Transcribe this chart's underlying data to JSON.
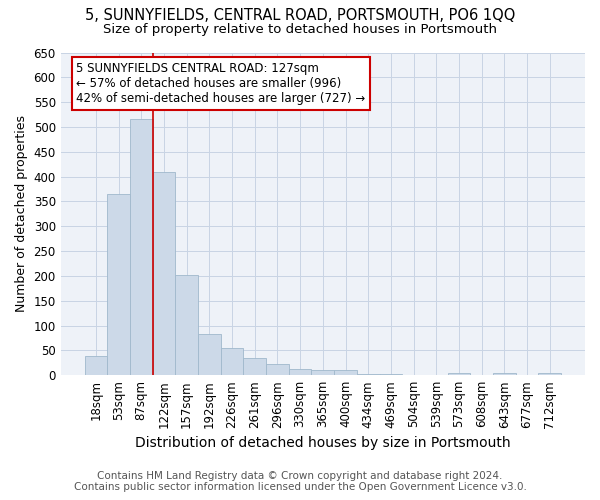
{
  "title": "5, SUNNYFIELDS, CENTRAL ROAD, PORTSMOUTH, PO6 1QQ",
  "subtitle": "Size of property relative to detached houses in Portsmouth",
  "xlabel": "Distribution of detached houses by size in Portsmouth",
  "ylabel": "Number of detached properties",
  "categories": [
    "18sqm",
    "53sqm",
    "87sqm",
    "122sqm",
    "157sqm",
    "192sqm",
    "226sqm",
    "261sqm",
    "296sqm",
    "330sqm",
    "365sqm",
    "400sqm",
    "434sqm",
    "469sqm",
    "504sqm",
    "539sqm",
    "573sqm",
    "608sqm",
    "643sqm",
    "677sqm",
    "712sqm"
  ],
  "values": [
    38,
    365,
    517,
    410,
    202,
    82,
    55,
    35,
    22,
    12,
    10,
    10,
    3,
    3,
    0,
    0,
    5,
    0,
    5,
    0,
    5
  ],
  "bar_color": "#ccd9e8",
  "bar_edge_color": "#a0b8cc",
  "red_line_index": 3,
  "annotation_text": "5 SUNNYFIELDS CENTRAL ROAD: 127sqm\n← 57% of detached houses are smaller (996)\n42% of semi-detached houses are larger (727) →",
  "annotation_box_color": "#ffffff",
  "annotation_box_edge_color": "#cc0000",
  "red_line_color": "#cc0000",
  "grid_color": "#c8d4e4",
  "background_color": "#ffffff",
  "plot_bg_color": "#eef2f8",
  "footer_text": "Contains HM Land Registry data © Crown copyright and database right 2024.\nContains public sector information licensed under the Open Government Licence v3.0.",
  "ylim": [
    0,
    650
  ],
  "yticks": [
    0,
    50,
    100,
    150,
    200,
    250,
    300,
    350,
    400,
    450,
    500,
    550,
    600,
    650
  ],
  "title_fontsize": 10.5,
  "subtitle_fontsize": 9.5,
  "xlabel_fontsize": 10,
  "ylabel_fontsize": 9,
  "tick_fontsize": 8.5,
  "annotation_fontsize": 8.5,
  "footer_fontsize": 7.5
}
